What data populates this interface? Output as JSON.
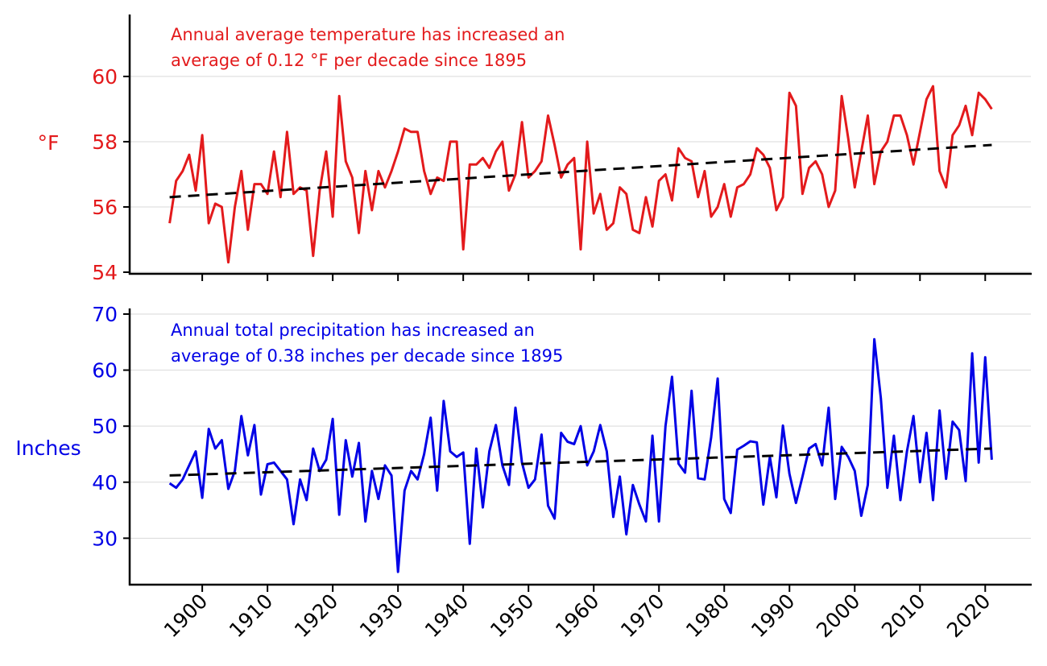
{
  "colors": {
    "temperature": "#e31a1c",
    "precipitation": "#0000e6",
    "trend": "#000000",
    "grid": "#d9d9d9"
  },
  "chart_data": [
    {
      "type": "line",
      "panel": "top",
      "ylabel": "°F",
      "ylim": [
        54,
        61.8
      ],
      "yticks": [
        54,
        56,
        58,
        60
      ],
      "annotation": [
        "Annual average temperature has increased an",
        "average of 0.12 °F per decade since 1895"
      ],
      "trend": {
        "x": [
          1895,
          2021
        ],
        "y": [
          56.3,
          57.9
        ]
      },
      "x": [
        1895,
        1896,
        1897,
        1898,
        1899,
        1900,
        1901,
        1902,
        1903,
        1904,
        1905,
        1906,
        1907,
        1908,
        1909,
        1910,
        1911,
        1912,
        1913,
        1914,
        1915,
        1916,
        1917,
        1918,
        1919,
        1920,
        1921,
        1922,
        1923,
        1924,
        1925,
        1926,
        1927,
        1928,
        1929,
        1930,
        1931,
        1932,
        1933,
        1934,
        1935,
        1936,
        1937,
        1938,
        1939,
        1940,
        1941,
        1942,
        1943,
        1944,
        1945,
        1946,
        1947,
        1948,
        1949,
        1950,
        1951,
        1952,
        1953,
        1954,
        1955,
        1956,
        1957,
        1958,
        1959,
        1960,
        1961,
        1962,
        1963,
        1964,
        1965,
        1966,
        1967,
        1968,
        1969,
        1970,
        1971,
        1972,
        1973,
        1974,
        1975,
        1976,
        1977,
        1978,
        1979,
        1980,
        1981,
        1982,
        1983,
        1984,
        1985,
        1986,
        1987,
        1988,
        1989,
        1990,
        1991,
        1992,
        1993,
        1994,
        1995,
        1996,
        1997,
        1998,
        1999,
        2000,
        2001,
        2002,
        2003,
        2004,
        2005,
        2006,
        2007,
        2008,
        2009,
        2010,
        2011,
        2012,
        2013,
        2014,
        2015,
        2016,
        2017,
        2018,
        2019,
        2020,
        2021
      ],
      "values": [
        55.5,
        56.8,
        57.1,
        57.6,
        56.5,
        58.2,
        55.5,
        56.1,
        56.0,
        54.3,
        56.0,
        57.1,
        55.3,
        56.7,
        56.7,
        56.4,
        57.7,
        56.3,
        58.3,
        56.4,
        56.6,
        56.5,
        54.5,
        56.5,
        57.7,
        55.7,
        59.4,
        57.4,
        56.9,
        55.2,
        57.1,
        55.9,
        57.1,
        56.6,
        57.1,
        57.7,
        58.4,
        58.3,
        58.3,
        57.1,
        56.4,
        56.9,
        56.8,
        58.0,
        58.0,
        54.7,
        57.3,
        57.3,
        57.5,
        57.2,
        57.7,
        58.0,
        56.5,
        57.0,
        58.6,
        56.9,
        57.1,
        57.4,
        58.8,
        57.9,
        56.9,
        57.3,
        57.5,
        54.7,
        58.0,
        55.8,
        56.4,
        55.3,
        55.5,
        56.6,
        56.4,
        55.3,
        55.2,
        56.3,
        55.4,
        56.8,
        57.0,
        56.2,
        57.8,
        57.5,
        57.4,
        56.3,
        57.1,
        55.7,
        56.0,
        56.7,
        55.7,
        56.6,
        56.7,
        57.0,
        57.8,
        57.6,
        57.2,
        55.9,
        56.3,
        59.5,
        59.1,
        56.4,
        57.2,
        57.4,
        57.0,
        56.0,
        56.5,
        59.4,
        58.1,
        56.6,
        57.7,
        58.8,
        56.7,
        57.7,
        58.0,
        58.8,
        58.8,
        58.2,
        57.3,
        58.3,
        59.3,
        59.7,
        57.1,
        56.6,
        58.2,
        58.5,
        59.1,
        58.2,
        59.5,
        59.3,
        59.0
      ],
      "title": ""
    },
    {
      "type": "line",
      "panel": "bottom",
      "ylabel": "Inches",
      "ylim": [
        22,
        70
      ],
      "yticks": [
        30,
        40,
        50,
        60,
        70
      ],
      "annotation": [
        "Annual total precipitation has increased an",
        "average of 0.38 inches per decade since 1895"
      ],
      "trend": {
        "x": [
          1895,
          2021
        ],
        "y": [
          41.2,
          46.0
        ]
      },
      "x": [
        1895,
        1896,
        1897,
        1898,
        1899,
        1900,
        1901,
        1902,
        1903,
        1904,
        1905,
        1906,
        1907,
        1908,
        1909,
        1910,
        1911,
        1912,
        1913,
        1914,
        1915,
        1916,
        1917,
        1918,
        1919,
        1920,
        1921,
        1922,
        1923,
        1924,
        1925,
        1926,
        1927,
        1928,
        1929,
        1930,
        1931,
        1932,
        1933,
        1934,
        1935,
        1936,
        1937,
        1938,
        1939,
        1940,
        1941,
        1942,
        1943,
        1944,
        1945,
        1946,
        1947,
        1948,
        1949,
        1950,
        1951,
        1952,
        1953,
        1954,
        1955,
        1956,
        1957,
        1958,
        1959,
        1960,
        1961,
        1962,
        1963,
        1964,
        1965,
        1966,
        1967,
        1968,
        1969,
        1970,
        1971,
        1972,
        1973,
        1974,
        1975,
        1976,
        1977,
        1978,
        1979,
        1980,
        1981,
        1982,
        1983,
        1984,
        1985,
        1986,
        1987,
        1988,
        1989,
        1990,
        1991,
        1992,
        1993,
        1994,
        1995,
        1996,
        1997,
        1998,
        1999,
        2000,
        2001,
        2002,
        2003,
        2004,
        2005,
        2006,
        2007,
        2008,
        2009,
        2010,
        2011,
        2012,
        2013,
        2014,
        2015,
        2016,
        2017,
        2018,
        2019,
        2020,
        2021
      ],
      "values": [
        39.8,
        39.0,
        40.5,
        43.0,
        45.5,
        37.2,
        49.5,
        46.0,
        47.5,
        38.8,
        42.0,
        51.8,
        44.8,
        50.2,
        37.8,
        43.2,
        43.5,
        42.0,
        40.5,
        32.5,
        40.5,
        36.8,
        46.0,
        42.0,
        44.0,
        51.3,
        34.2,
        47.5,
        41.0,
        47.0,
        33.0,
        42.0,
        37.0,
        43.0,
        41.2,
        24.0,
        38.5,
        42.0,
        40.5,
        45.0,
        51.5,
        38.5,
        54.5,
        45.5,
        44.5,
        45.3,
        29.0,
        46.0,
        35.5,
        45.5,
        50.2,
        43.0,
        39.5,
        53.3,
        43.5,
        39.0,
        40.5,
        48.5,
        35.8,
        33.5,
        48.8,
        47.2,
        46.8,
        50.0,
        43.0,
        45.5,
        50.2,
        45.5,
        33.8,
        41.0,
        30.7,
        39.5,
        36.0,
        33.0,
        48.3,
        33.0,
        50.0,
        58.8,
        43.3,
        41.7,
        56.3,
        40.7,
        40.5,
        48.0,
        58.5,
        37.0,
        34.5,
        45.8,
        46.5,
        47.3,
        47.1,
        36.0,
        44.5,
        37.3,
        50.1,
        41.5,
        36.3,
        41.0,
        46.0,
        46.8,
        43.0,
        53.3,
        37.0,
        46.3,
        44.5,
        42.0,
        34.0,
        39.5,
        65.5,
        55.0,
        39.0,
        48.3,
        36.8,
        45.5,
        51.8,
        40.0,
        48.8,
        36.8,
        52.8,
        40.6,
        50.8,
        49.3,
        40.2,
        63.0,
        43.5,
        62.3,
        44.0
      ],
      "title": ""
    }
  ],
  "x_axis": {
    "tick_labels": [
      "1900",
      "1910",
      "1920",
      "1930",
      "1940",
      "1950",
      "1960",
      "1970",
      "1980",
      "1990",
      "2000",
      "2010",
      "2020"
    ],
    "tick_values": [
      1900,
      1910,
      1920,
      1930,
      1940,
      1950,
      1960,
      1970,
      1980,
      1990,
      2000,
      2010,
      2020
    ],
    "range": [
      1889,
      2027
    ]
  }
}
